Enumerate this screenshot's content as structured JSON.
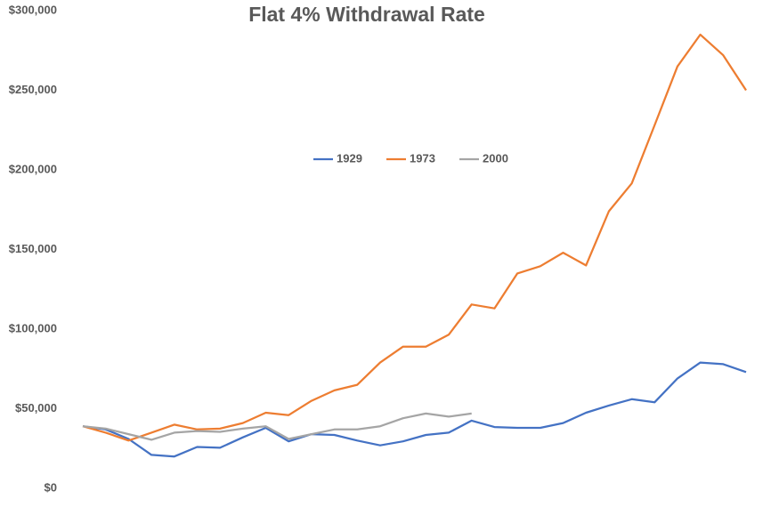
{
  "chart_data": {
    "type": "line",
    "title": "Flat 4% Withdrawal Rate",
    "categories": [
      null,
      null,
      null,
      null,
      null,
      null,
      null,
      null,
      null,
      null,
      null,
      null,
      null,
      null,
      null,
      null,
      null,
      null,
      null,
      null,
      null,
      null,
      null,
      null,
      null,
      null,
      null,
      null,
      null,
      null
    ],
    "series": [
      {
        "name": "1929",
        "color": "#4472c4",
        "values": [
          39000,
          37000,
          31000,
          21000,
          20000,
          26000,
          25500,
          32000,
          38000,
          29500,
          34000,
          33500,
          30000,
          27000,
          29500,
          33500,
          35000,
          42500,
          38500,
          38000,
          38000,
          41000,
          47500,
          52000,
          56000,
          54000,
          69000,
          79000,
          78000,
          73000
        ]
      },
      {
        "name": "1973",
        "color": "#ed7d31",
        "values": [
          39000,
          35000,
          30000,
          35000,
          40000,
          37000,
          37500,
          41000,
          47500,
          46000,
          55000,
          61500,
          65000,
          79000,
          89000,
          89000,
          96500,
          115500,
          113000,
          135000,
          139500,
          148000,
          140000,
          174000,
          191500,
          228000,
          265000,
          285000,
          272000,
          250000
        ]
      },
      {
        "name": "2000",
        "color": "#a5a5a5",
        "values": [
          39000,
          37500,
          34000,
          30500,
          35000,
          36000,
          35500,
          37500,
          39000,
          31000,
          34000,
          37000,
          37000,
          39000,
          44000,
          47000,
          45000,
          47000,
          null,
          null,
          null,
          null,
          null,
          null,
          null,
          null,
          null,
          null,
          null,
          null
        ]
      }
    ],
    "ylim": [
      0,
      300000
    ],
    "yticks": [
      {
        "value": 0,
        "label": "$0"
      },
      {
        "value": 50000,
        "label": "$50,000"
      },
      {
        "value": 100000,
        "label": "$100,000"
      },
      {
        "value": 150000,
        "label": "$150,000"
      },
      {
        "value": 200000,
        "label": "$200,000"
      },
      {
        "value": 250000,
        "label": "$250,000"
      },
      {
        "value": 300000,
        "label": "$300,000"
      }
    ],
    "grid": false,
    "legend": "center"
  }
}
